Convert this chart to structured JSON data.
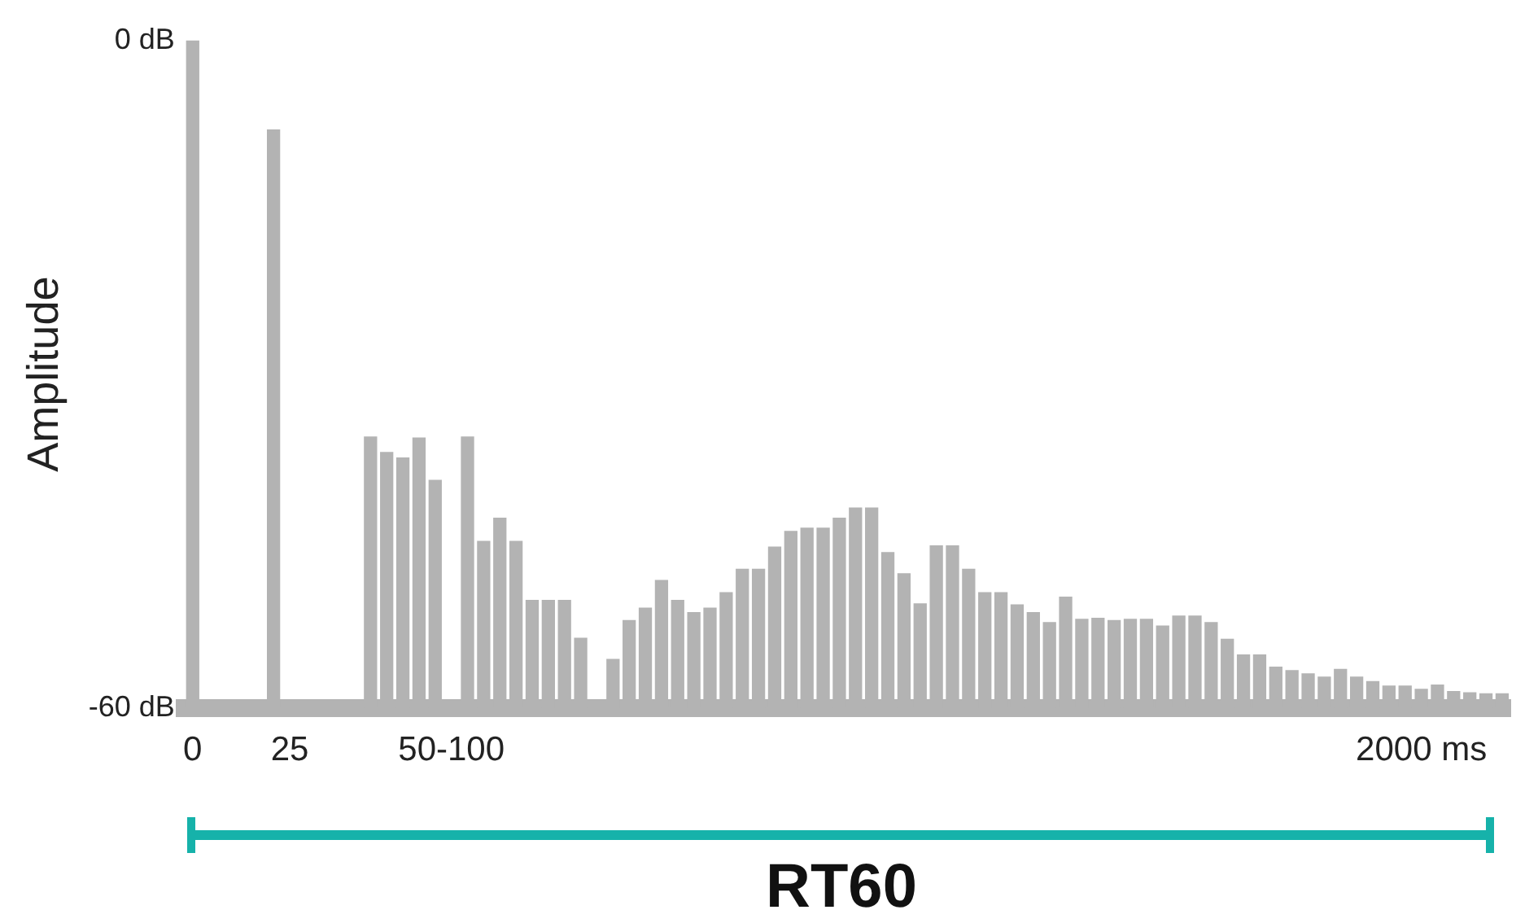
{
  "chart_data": {
    "type": "bar",
    "xlabel": "RT60",
    "ylabel": "Amplitude",
    "categories": [
      "0",
      null,
      null,
      null,
      null,
      null,
      "25",
      null,
      null,
      null,
      null,
      null,
      null,
      null,
      null,
      null,
      "50-100",
      null,
      null,
      null,
      null,
      null,
      null,
      null,
      null,
      null,
      null,
      null,
      null,
      null,
      null,
      null,
      null,
      null,
      null,
      null,
      null,
      null,
      null,
      null,
      null,
      null,
      null,
      null,
      null,
      null,
      null,
      null,
      null,
      null,
      null,
      null,
      null,
      null,
      null,
      null,
      null,
      null,
      null,
      null,
      null,
      null,
      null,
      null,
      null,
      null,
      null,
      null,
      null,
      null,
      null,
      null,
      null,
      null,
      null,
      null,
      "2000 ms",
      null,
      null,
      null,
      null,
      null
    ],
    "values": [
      60,
      null,
      null,
      null,
      null,
      52,
      null,
      null,
      null,
      null,
      null,
      24.4,
      23,
      22.5,
      24.3,
      20.5,
      null,
      24.4,
      15,
      17.1,
      15,
      9.7,
      9.7,
      9.7,
      6.3,
      null,
      4.4,
      7.9,
      9,
      11.5,
      9.7,
      8.6,
      9,
      10.4,
      12.5,
      12.5,
      14.5,
      15.9,
      16.2,
      16.2,
      17.1,
      18,
      18,
      14,
      12.1,
      9.4,
      14.6,
      14.6,
      12.5,
      10.4,
      10.4,
      9.3,
      8.6,
      7.7,
      10,
      8,
      8.1,
      7.9,
      8,
      8,
      7.4,
      8.3,
      8.3,
      7.7,
      6.2,
      4.8,
      4.8,
      3.7,
      3.4,
      3.1,
      2.8,
      3.5,
      2.8,
      2.4,
      2,
      2,
      1.7,
      2.1,
      1.5,
      1.4,
      1.3,
      1.3
    ],
    "base": [
      -60,
      null,
      null,
      null,
      null,
      -60,
      null,
      null,
      null,
      null,
      null,
      -60,
      -60,
      -60,
      -60,
      -60,
      null,
      -60,
      -60,
      -60,
      -60,
      -60,
      -60,
      -60,
      -60,
      null,
      -60,
      -60,
      -60,
      -60,
      -60,
      -60,
      -60,
      -60,
      -60,
      -60,
      -60,
      -60,
      -60,
      -60,
      -60,
      -60,
      -60,
      -60,
      -60,
      -60,
      -60,
      -60,
      -60,
      -60,
      -60,
      -60,
      -60,
      -60,
      -60,
      -60,
      -60,
      -60,
      -60,
      -60,
      -60,
      -60,
      -60,
      -60,
      -60,
      -60,
      -60,
      -60,
      -60,
      -60,
      -60,
      -60,
      -60,
      -60,
      -60,
      -60,
      -60,
      -60,
      -60,
      -60,
      -60,
      -60
    ],
    "color": "#b3b3b3",
    "ylim": [
      -60,
      0
    ],
    "yticks": [
      {
        "value": 0,
        "label": "0 dB"
      },
      {
        "value": -60,
        "label": "-60 dB"
      }
    ]
  }
}
